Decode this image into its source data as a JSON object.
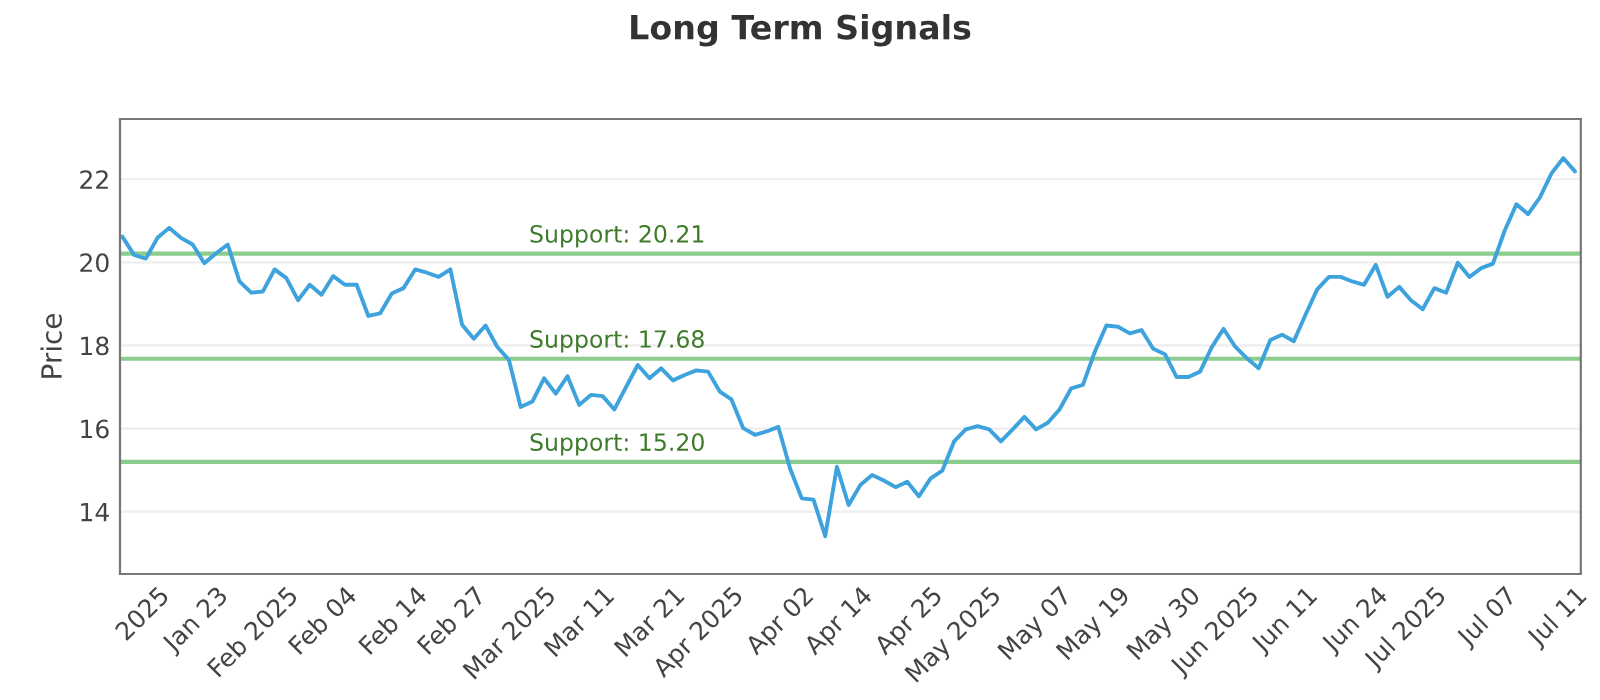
{
  "chart_data": {
    "type": "line",
    "title": "Long Term Signals",
    "ylabel": "Price",
    "categories": [
      null,
      null,
      null,
      "2025",
      null,
      null,
      null,
      null,
      "Jan 23",
      null,
      null,
      null,
      null,
      null,
      "Feb 2025",
      null,
      null,
      null,
      null,
      "Feb 04",
      null,
      null,
      null,
      null,
      null,
      "Feb 14",
      null,
      null,
      null,
      null,
      "Feb 27",
      null,
      null,
      null,
      null,
      null,
      "Mar 2025",
      null,
      null,
      null,
      null,
      "Mar 11",
      null,
      null,
      null,
      null,
      null,
      "Mar 21",
      null,
      null,
      null,
      null,
      "Apr 2025",
      null,
      null,
      null,
      null,
      null,
      "Apr 02",
      null,
      null,
      null,
      null,
      "Apr 14",
      null,
      null,
      null,
      null,
      null,
      "Apr 25",
      null,
      null,
      null,
      null,
      "May 2025",
      null,
      null,
      null,
      null,
      null,
      "May 07",
      null,
      null,
      null,
      null,
      "May 19",
      null,
      null,
      null,
      null,
      null,
      "May 30",
      null,
      null,
      null,
      null,
      "Jun 2025",
      null,
      null,
      null,
      null,
      "Jun 11",
      null,
      null,
      null,
      null,
      null,
      "Jun 24",
      null,
      null,
      null,
      null,
      "Jul 2025",
      null,
      null,
      null,
      null,
      null,
      "Jul 07",
      null,
      null,
      null,
      null,
      null,
      "Jul 11"
    ],
    "series": [
      {
        "color": "#3ea3dc",
        "values": [
          20.62,
          20.18,
          20.09,
          20.59,
          20.83,
          20.59,
          20.43,
          19.98,
          20.22,
          20.43,
          19.54,
          19.27,
          19.3,
          19.83,
          19.62,
          19.09,
          19.46,
          19.22,
          19.67,
          19.46,
          19.46,
          18.71,
          18.77,
          19.25,
          19.38,
          19.83,
          19.75,
          19.65,
          19.83,
          18.5,
          18.16,
          18.48,
          17.97,
          17.65,
          16.52,
          16.65,
          17.21,
          16.84,
          17.26,
          16.57,
          16.81,
          16.78,
          16.46,
          17.0,
          17.53,
          17.21,
          17.45,
          17.16,
          17.29,
          17.4,
          17.37,
          16.89,
          16.7,
          16.01,
          15.85,
          15.93,
          16.04,
          15.04,
          14.32,
          14.29,
          13.41,
          15.08,
          14.16,
          14.64,
          14.88,
          14.75,
          14.59,
          14.72,
          14.37,
          14.8,
          14.99,
          15.69,
          15.98,
          16.06,
          15.98,
          15.69,
          15.98,
          16.28,
          15.98,
          16.14,
          16.46,
          16.97,
          17.05,
          17.84,
          18.48,
          18.45,
          18.29,
          18.37,
          17.92,
          17.79,
          17.24,
          17.24,
          17.37,
          17.96,
          18.4,
          17.97,
          17.69,
          17.45,
          18.13,
          18.26,
          18.1,
          18.74,
          19.35,
          19.65,
          19.65,
          19.54,
          19.46,
          19.94,
          19.17,
          19.41,
          19.09,
          18.87,
          19.38,
          19.27,
          19.99,
          19.65,
          19.86,
          19.97,
          20.76,
          21.4,
          21.16,
          21.56,
          22.14,
          22.51,
          22.19
        ]
      }
    ],
    "ylim": [
      12.5,
      23.45
    ],
    "yticks": [
      14,
      16,
      18,
      20,
      22
    ],
    "grid": "y",
    "marker": "none",
    "line_style": "solid",
    "ref_lines": [
      {
        "axis": "y",
        "value": 20.21,
        "label": "Support: 20.21",
        "color": "#8ccc8c"
      },
      {
        "axis": "y",
        "value": 17.68,
        "label": "Support: 17.68",
        "color": "#8ccc8c"
      },
      {
        "axis": "y",
        "value": 15.2,
        "label": "Support: 15.20",
        "color": "#8ccc8c"
      }
    ]
  }
}
